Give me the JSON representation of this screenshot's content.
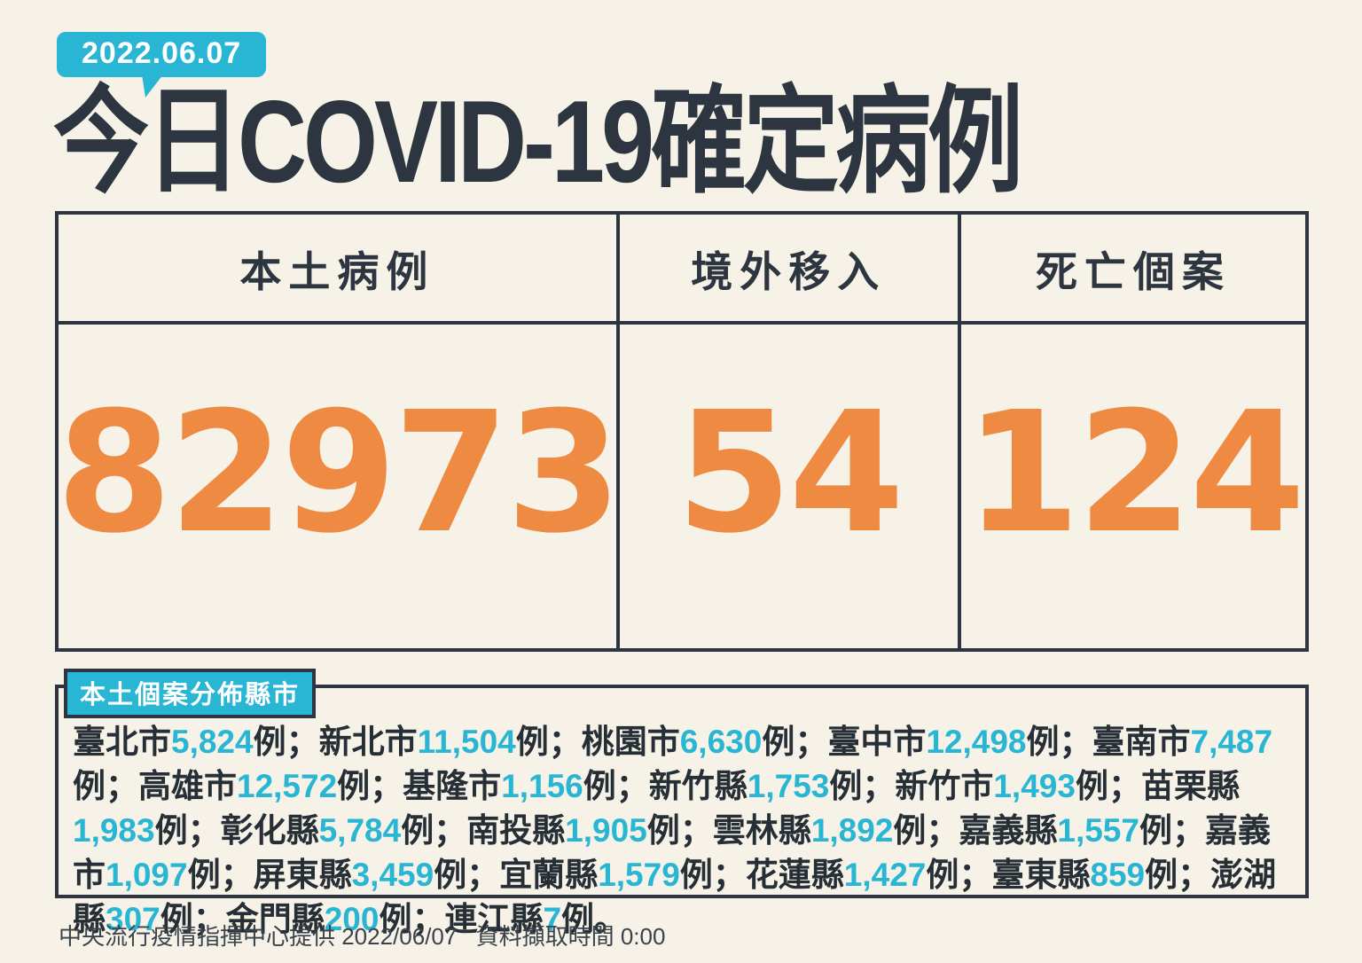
{
  "header": {
    "date": "2022.06.07",
    "title": "今日COVID-19確定病例"
  },
  "summary_table": {
    "columns": [
      {
        "label": "本土病例",
        "value": "82973"
      },
      {
        "label": "境外移入",
        "value": "54"
      },
      {
        "label": "死亡個案",
        "value": "124"
      }
    ]
  },
  "distribution": {
    "badge": "本土個案分佈縣市",
    "suffix": "例",
    "separator": "；",
    "terminator": "。",
    "regions": [
      {
        "name": "臺北市",
        "count": "5,824"
      },
      {
        "name": "新北市",
        "count": "11,504"
      },
      {
        "name": "桃園市",
        "count": "6,630"
      },
      {
        "name": "臺中市",
        "count": "12,498"
      },
      {
        "name": "臺南市",
        "count": "7,487"
      },
      {
        "name": "高雄市",
        "count": "12,572"
      },
      {
        "name": "基隆市",
        "count": "1,156"
      },
      {
        "name": "新竹縣",
        "count": "1,753"
      },
      {
        "name": "新竹市",
        "count": "1,493"
      },
      {
        "name": "苗栗縣",
        "count": "1,983"
      },
      {
        "name": "彰化縣",
        "count": "5,784"
      },
      {
        "name": "南投縣",
        "count": "1,905"
      },
      {
        "name": "雲林縣",
        "count": "1,892"
      },
      {
        "name": "嘉義縣",
        "count": "1,557"
      },
      {
        "name": "嘉義市",
        "count": "1,097"
      },
      {
        "name": "屏東縣",
        "count": "3,459"
      },
      {
        "name": "宜蘭縣",
        "count": "1,579"
      },
      {
        "name": "花蓮縣",
        "count": "1,427"
      },
      {
        "name": "臺東縣",
        "count": "859"
      },
      {
        "name": "澎湖縣",
        "count": "307"
      },
      {
        "name": "金門縣",
        "count": "200"
      },
      {
        "name": "連江縣",
        "count": "7"
      }
    ]
  },
  "footer": {
    "source": "中央流行疫情指揮中心提供 2022/06/07",
    "extract": "資料擷取時間 0:00"
  },
  "colors": {
    "background": "#f6f2e7",
    "ink": "#2d3640",
    "text_ink": "#262e36",
    "accent_cyan": "#29b6d4",
    "accent_orange": "#ee8a42",
    "badge_text": "#ffffff",
    "footer_ink": "#3a424a"
  },
  "chart_data": {
    "type": "table",
    "title": "今日COVID-19確定病例",
    "date": "2022.06.07",
    "columns": [
      "本土病例",
      "境外移入",
      "死亡個案"
    ],
    "values": [
      82973,
      54,
      124
    ],
    "local_distribution": {
      "categories": [
        "臺北市",
        "新北市",
        "桃園市",
        "臺中市",
        "臺南市",
        "高雄市",
        "基隆市",
        "新竹縣",
        "新竹市",
        "苗栗縣",
        "彰化縣",
        "南投縣",
        "雲林縣",
        "嘉義縣",
        "嘉義市",
        "屏東縣",
        "宜蘭縣",
        "花蓮縣",
        "臺東縣",
        "澎湖縣",
        "金門縣",
        "連江縣"
      ],
      "values": [
        5824,
        11504,
        6630,
        12498,
        7487,
        12572,
        1156,
        1753,
        1493,
        1983,
        5784,
        1905,
        1892,
        1557,
        1097,
        3459,
        1579,
        1427,
        859,
        307,
        200,
        7
      ]
    }
  }
}
